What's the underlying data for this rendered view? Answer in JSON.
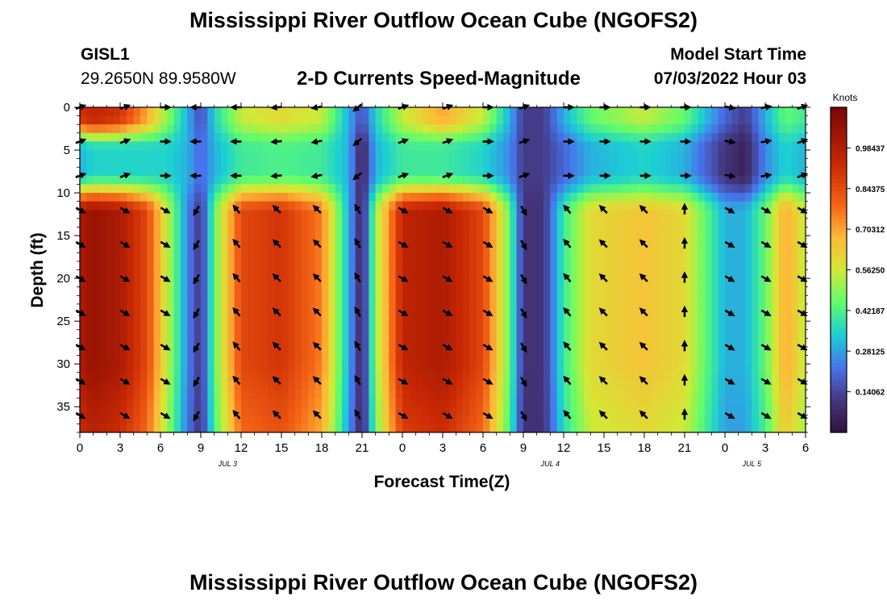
{
  "chart_data": {
    "type": "heatmap",
    "title": "Mississippi River Outflow Ocean Cube (NGOFS2)",
    "station": "GISL1",
    "location": "29.2650N  89.9580W",
    "subtitle": "2-D Currents Speed-Magnitude",
    "model_start_label": "Model Start Time",
    "model_start_value": "07/03/2022 Hour 03",
    "xlabel": "Forecast Time(Z)",
    "ylabel": "Depth (ft)",
    "x_ticks": [
      "0",
      "3",
      "6",
      "9",
      "12",
      "15",
      "18",
      "21",
      "0",
      "3",
      "6",
      "9",
      "12",
      "15",
      "18",
      "21",
      "0",
      "3",
      "6"
    ],
    "date_labels": [
      {
        "label": "JUL 3",
        "hour": 11
      },
      {
        "label": "JUL 4",
        "hour": 35
      },
      {
        "label": "JUL 5",
        "hour": 50
      }
    ],
    "x_range_hours": [
      0,
      54
    ],
    "y_ticks": [
      0,
      5,
      10,
      15,
      20,
      25,
      30,
      35
    ],
    "ylim": [
      0,
      38
    ],
    "colorbar": {
      "label": "Knots",
      "ticks": [
        "0.98437",
        "0.84375",
        "0.70312",
        "0.56250",
        "0.42187",
        "0.28125",
        "0.14062"
      ],
      "range": [
        0,
        1.125
      ]
    },
    "speed_profile": {
      "upper_depths_ft": [
        0,
        4,
        8
      ],
      "lower_depths_ft": [
        12,
        16,
        20,
        24,
        28,
        32,
        36
      ],
      "hours": [
        0,
        1,
        3,
        5,
        6.5,
        8,
        9,
        10,
        12,
        15,
        18,
        20,
        21,
        22,
        24,
        27,
        30,
        32,
        33,
        34.5,
        36,
        38,
        42,
        45,
        48,
        49.5,
        51,
        52.5,
        54
      ],
      "surface_knots": [
        0.9,
        0.95,
        0.9,
        0.7,
        0.5,
        0.3,
        0.15,
        0.35,
        0.55,
        0.6,
        0.55,
        0.3,
        0.15,
        0.35,
        0.55,
        0.7,
        0.55,
        0.3,
        0.12,
        0.12,
        0.3,
        0.45,
        0.55,
        0.45,
        0.2,
        0.12,
        0.3,
        0.45,
        0.4
      ],
      "mid_knots": [
        0.3,
        0.35,
        0.35,
        0.35,
        0.35,
        0.3,
        0.2,
        0.3,
        0.4,
        0.42,
        0.4,
        0.3,
        0.05,
        0.3,
        0.4,
        0.4,
        0.35,
        0.25,
        0.12,
        0.12,
        0.2,
        0.3,
        0.35,
        0.3,
        0.1,
        0.05,
        0.25,
        0.35,
        0.3
      ],
      "deep_knots": [
        1.0,
        1.05,
        1.0,
        0.85,
        0.55,
        0.25,
        0.1,
        0.45,
        0.85,
        0.9,
        0.75,
        0.3,
        0.05,
        0.5,
        0.95,
        1.0,
        0.85,
        0.45,
        0.1,
        0.1,
        0.4,
        0.6,
        0.65,
        0.6,
        0.3,
        0.3,
        0.45,
        0.7,
        0.55
      ],
      "arrow_hours": [
        0,
        3.3,
        6.3,
        8.7,
        11.7,
        14.7,
        17.7,
        20.7,
        24,
        27.3,
        30.3,
        33,
        36.3,
        39,
        42,
        45,
        48.3,
        51,
        53.7
      ],
      "arrow_dir_upper_deg": [
        20,
        20,
        0,
        180,
        180,
        185,
        190,
        220,
        20,
        20,
        0,
        20,
        0,
        0,
        0,
        0,
        -10,
        10,
        20
      ],
      "arrow_dir_lower_deg": [
        -30,
        -30,
        -30,
        -120,
        130,
        135,
        135,
        120,
        -30,
        -30,
        -30,
        -60,
        130,
        135,
        135,
        90,
        -30,
        -30,
        -30
      ]
    }
  }
}
